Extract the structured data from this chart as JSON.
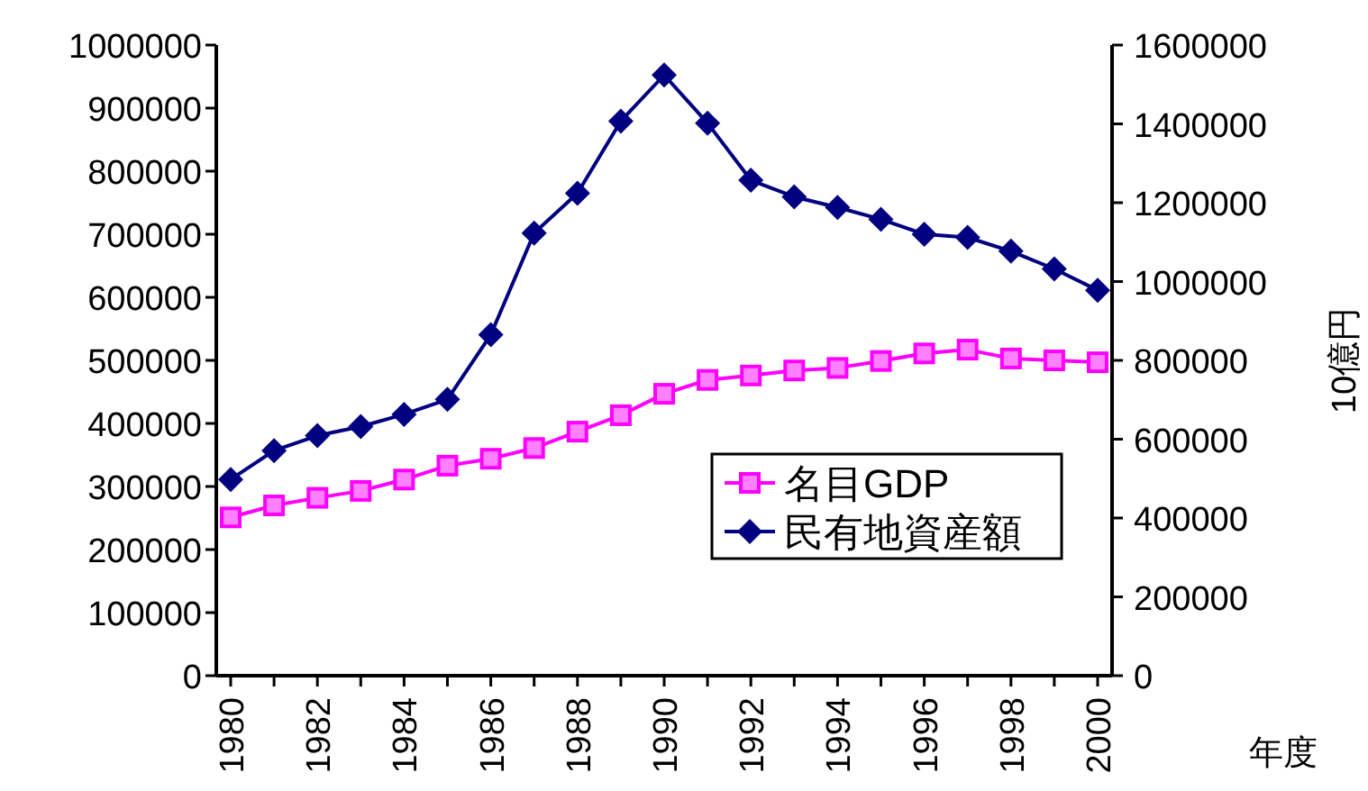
{
  "chart_data": {
    "type": "line",
    "categories": [
      "1980",
      null,
      "1982",
      null,
      "1984",
      null,
      "1986",
      null,
      "1988",
      null,
      "1990",
      null,
      "1992",
      null,
      "1994",
      null,
      "1996",
      null,
      "1998",
      null,
      "2000"
    ],
    "series": [
      {
        "name": "名目GDP",
        "color": "#ff00ff",
        "marker": "square",
        "values": [
          251000,
          270000,
          282000,
          293000,
          311000,
          333000,
          344000,
          361000,
          387000,
          413000,
          447000,
          469000,
          476000,
          484000,
          488000,
          499000,
          511000,
          517000,
          503000,
          500000,
          497000
        ]
      },
      {
        "name": "民有地資産額",
        "color": "#000080",
        "marker": "diamond",
        "axis": "y2",
        "values": [
          498000,
          571000,
          609000,
          632000,
          663000,
          701000,
          865000,
          1123000,
          1224000,
          1407000,
          1524000,
          1402000,
          1257000,
          1215000,
          1188000,
          1158000,
          1120000,
          1112000,
          1077000,
          1032000,
          978000
        ]
      }
    ],
    "ylim": [
      0,
      1000000
    ],
    "yticks": [
      0,
      100000,
      200000,
      300000,
      400000,
      500000,
      600000,
      700000,
      800000,
      900000,
      1000000
    ],
    "y2lim": [
      0,
      1600000
    ],
    "y2ticks": [
      0,
      200000,
      400000,
      600000,
      800000,
      1000000,
      1200000,
      1400000,
      1600000
    ],
    "xlabel": "年度",
    "y2label": "10億円",
    "legend": "right",
    "grid": false
  }
}
